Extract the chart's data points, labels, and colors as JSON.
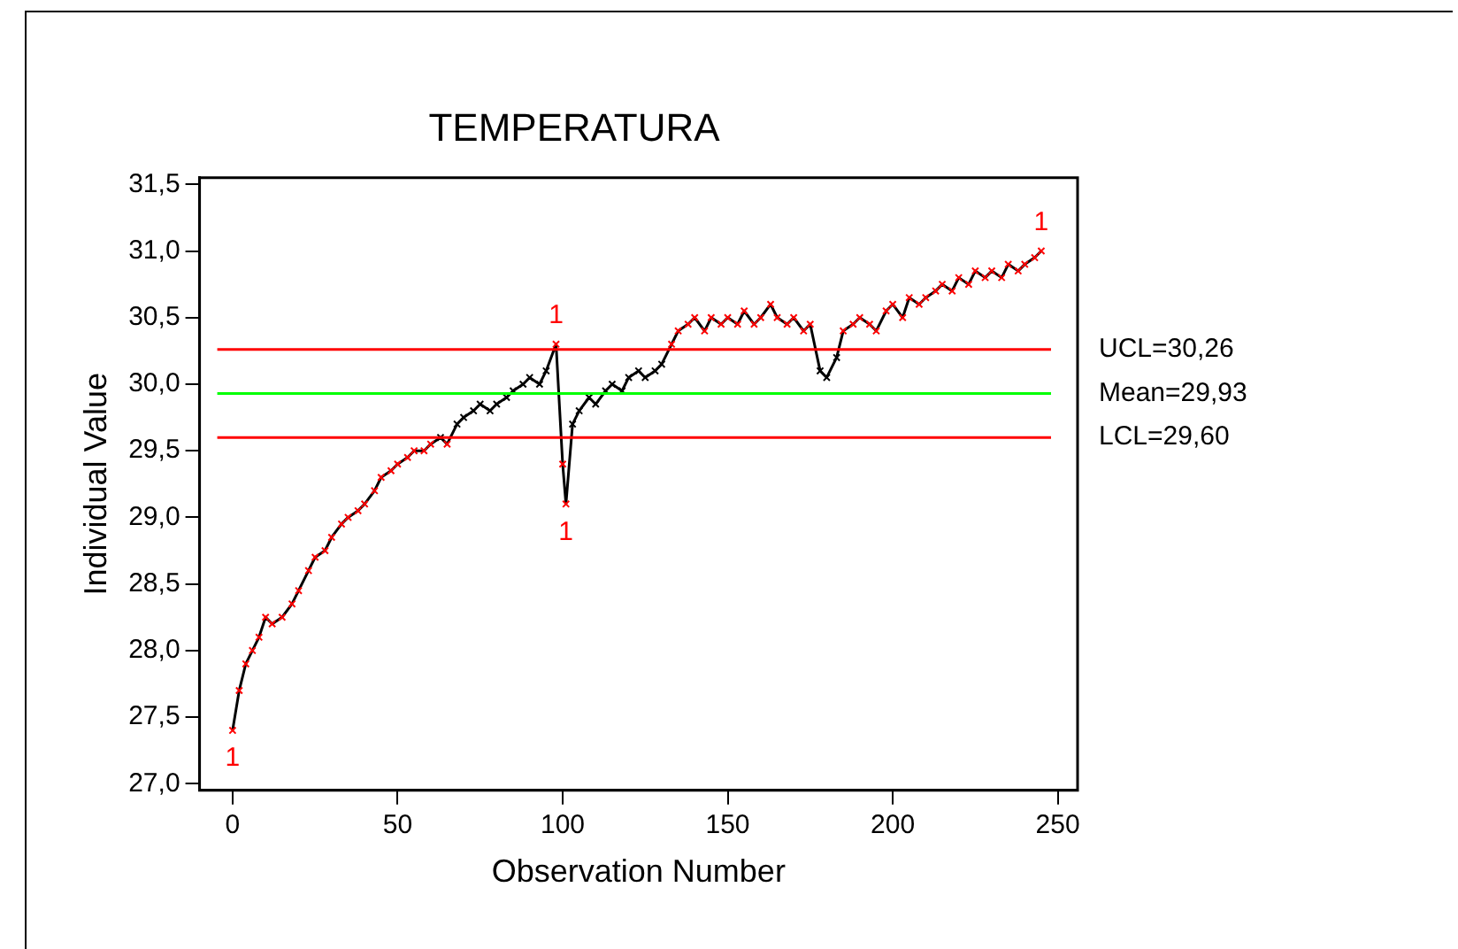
{
  "chart_data": {
    "type": "line",
    "title": "TEMPERATURA",
    "xlabel": "Observation Number",
    "ylabel": "Individual Value",
    "x": [
      0,
      2,
      4,
      6,
      8,
      10,
      12,
      15,
      18,
      20,
      23,
      25,
      28,
      30,
      33,
      35,
      38,
      40,
      43,
      45,
      48,
      50,
      53,
      55,
      58,
      60,
      63,
      65,
      68,
      70,
      73,
      75,
      78,
      80,
      83,
      85,
      88,
      90,
      93,
      95,
      98,
      100,
      101,
      103,
      105,
      108,
      110,
      113,
      115,
      118,
      120,
      123,
      125,
      128,
      130,
      133,
      135,
      138,
      140,
      143,
      145,
      148,
      150,
      153,
      155,
      158,
      160,
      163,
      165,
      168,
      170,
      173,
      175,
      178,
      180,
      183,
      185,
      188,
      190,
      193,
      195,
      198,
      200,
      203,
      205,
      208,
      210,
      213,
      215,
      218,
      220,
      223,
      225,
      228,
      230,
      233,
      235,
      238,
      240,
      243,
      245
    ],
    "series": [
      {
        "color": "#000000",
        "values": [
          27.4,
          27.7,
          27.9,
          28.0,
          28.1,
          28.25,
          28.2,
          28.25,
          28.35,
          28.45,
          28.6,
          28.7,
          28.75,
          28.85,
          28.95,
          29.0,
          29.05,
          29.1,
          29.2,
          29.3,
          29.35,
          29.4,
          29.45,
          29.5,
          29.5,
          29.55,
          29.6,
          29.55,
          29.7,
          29.75,
          29.8,
          29.85,
          29.8,
          29.85,
          29.9,
          29.95,
          30.0,
          30.05,
          30.0,
          30.1,
          30.3,
          29.4,
          29.1,
          29.7,
          29.8,
          29.9,
          29.85,
          29.95,
          30.0,
          29.95,
          30.05,
          30.1,
          30.05,
          30.1,
          30.15,
          30.3,
          30.4,
          30.45,
          30.5,
          30.4,
          30.5,
          30.45,
          30.5,
          30.45,
          30.55,
          30.45,
          30.5,
          30.6,
          30.5,
          30.45,
          30.5,
          30.4,
          30.45,
          30.1,
          30.05,
          30.2,
          30.4,
          30.45,
          30.5,
          30.45,
          30.4,
          30.55,
          30.6,
          30.5,
          30.65,
          30.6,
          30.65,
          30.7,
          30.75,
          30.7,
          30.8,
          30.75,
          30.85,
          30.8,
          30.85,
          30.8,
          30.9,
          30.85,
          30.9,
          30.95,
          31.0
        ],
        "colors": [
          "#ff0000",
          "#ff0000",
          "#ff0000",
          "#ff0000",
          "#ff0000",
          "#ff0000",
          "#ff0000",
          "#ff0000",
          "#ff0000",
          "#ff0000",
          "#ff0000",
          "#ff0000",
          "#ff0000",
          "#ff0000",
          "#ff0000",
          "#ff0000",
          "#ff0000",
          "#ff0000",
          "#ff0000",
          "#ff0000",
          "#ff0000",
          "#ff0000",
          "#ff0000",
          "#ff0000",
          "#ff0000",
          "#ff0000",
          "#000000",
          "#ff0000",
          "#000000",
          "#000000",
          "#000000",
          "#000000",
          "#000000",
          "#000000",
          "#000000",
          "#000000",
          "#000000",
          "#000000",
          "#000000",
          "#000000",
          "#ff0000",
          "#ff0000",
          "#ff0000",
          "#000000",
          "#000000",
          "#000000",
          "#000000",
          "#000000",
          "#000000",
          "#000000",
          "#000000",
          "#000000",
          "#000000",
          "#000000",
          "#000000",
          "#ff0000",
          "#ff0000",
          "#ff0000",
          "#ff0000",
          "#ff0000",
          "#ff0000",
          "#ff0000",
          "#ff0000",
          "#ff0000",
          "#ff0000",
          "#ff0000",
          "#ff0000",
          "#ff0000",
          "#ff0000",
          "#ff0000",
          "#ff0000",
          "#ff0000",
          "#ff0000",
          "#000000",
          "#000000",
          "#000000",
          "#ff0000",
          "#ff0000",
          "#ff0000",
          "#ff0000",
          "#ff0000",
          "#ff0000",
          "#ff0000",
          "#ff0000",
          "#ff0000",
          "#ff0000",
          "#ff0000",
          "#ff0000",
          "#ff0000",
          "#ff0000",
          "#ff0000",
          "#ff0000",
          "#ff0000",
          "#ff0000",
          "#ff0000",
          "#ff0000",
          "#ff0000",
          "#ff0000",
          "#ff0000",
          "#ff0000",
          "#ff0000"
        ]
      }
    ],
    "marker": "cross",
    "xlim": [
      -10,
      256
    ],
    "xticks": [
      0,
      50,
      100,
      150,
      200,
      250
    ],
    "ylim": [
      26.95,
      31.55
    ],
    "yticks": [
      {
        "value": 27,
        "label": "27,0"
      },
      {
        "value": 27.5,
        "label": "27,5"
      },
      {
        "value": 28,
        "label": "28,0"
      },
      {
        "value": 28.5,
        "label": "28,5"
      },
      {
        "value": 29,
        "label": "29,0"
      },
      {
        "value": 29.5,
        "label": "29,5"
      },
      {
        "value": 30,
        "label": "30,0"
      },
      {
        "value": 30.5,
        "label": "30,5"
      },
      {
        "value": 31,
        "label": "31,0"
      },
      {
        "value": 31.5,
        "label": "31,5"
      }
    ],
    "ref_lines": [
      {
        "axis": "y",
        "value": 30.26,
        "label": "UCL=30,26",
        "color": "#ff0000"
      },
      {
        "axis": "y",
        "value": 29.93,
        "label": "Mean=29,93",
        "color": "#00ff00"
      },
      {
        "axis": "y",
        "value": 29.6,
        "label": "LCL=29,60",
        "color": "#ff0000"
      }
    ],
    "annotations": [
      {
        "text": "1",
        "x": 0,
        "y": 27.4
      },
      {
        "text": "1",
        "x": 98,
        "y": 30.3
      },
      {
        "text": "1",
        "x": 101,
        "y": 29.1
      },
      {
        "text": "1",
        "x": 245,
        "y": 31.0
      }
    ],
    "grid": false,
    "legend": false
  }
}
